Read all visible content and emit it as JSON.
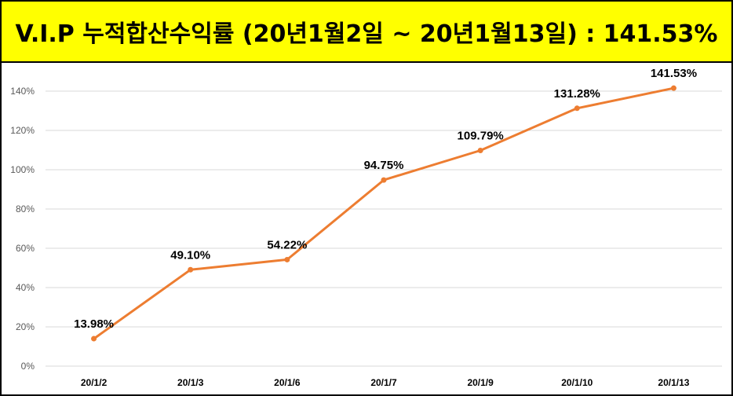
{
  "title": "V.I.P 누적합산수익률 (20년1월2일 ~ 20년1월13일) : 141.53%",
  "colors": {
    "title_background": "#ffff00",
    "line": "#ed7d31",
    "gridline": "#d9d9d9"
  },
  "chart_data": {
    "type": "line",
    "categories": [
      "20/1/2",
      "20/1/3",
      "20/1/6",
      "20/1/7",
      "20/1/9",
      "20/1/10",
      "20/1/13"
    ],
    "values": [
      13.98,
      49.1,
      54.22,
      94.75,
      109.79,
      131.28,
      141.53
    ],
    "data_labels": [
      "13.98%",
      "49.10%",
      "54.22%",
      "94.75%",
      "109.79%",
      "131.28%",
      "141.53%"
    ],
    "y_ticks": [
      "0%",
      "20%",
      "40%",
      "60%",
      "80%",
      "100%",
      "120%",
      "140%"
    ],
    "ylim": [
      0,
      140
    ],
    "grid": true,
    "legend": "none"
  }
}
